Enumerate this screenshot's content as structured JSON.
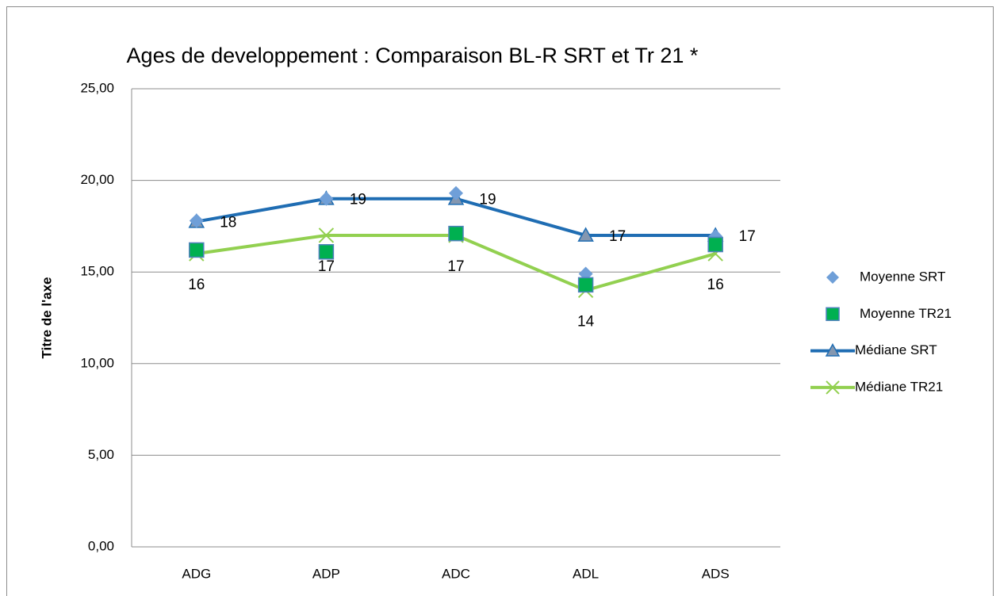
{
  "chart_data": {
    "type": "line",
    "title": "Ages de developpement  : Comparaison BL-R SRT et Tr 21 *",
    "y_axis_label": "Titre de l'axe",
    "categories": [
      "ADG",
      "ADP",
      "ADC",
      "ADL",
      "ADS"
    ],
    "ylim": [
      0,
      25
    ],
    "yticks": [
      {
        "value": 0,
        "label": "0,00"
      },
      {
        "value": 5,
        "label": "5,00"
      },
      {
        "value": 10,
        "label": "10,00"
      },
      {
        "value": 15,
        "label": "15,00"
      },
      {
        "value": 20,
        "label": "20,00"
      },
      {
        "value": 25,
        "label": "25,00"
      }
    ],
    "grid": true,
    "legend": "right",
    "series": [
      {
        "name": "Moyenne SRT",
        "color": "#6f9fd8",
        "marker": "diamond",
        "values": [
          17.8,
          19.0,
          19.3,
          14.9,
          16.95
        ]
      },
      {
        "name": "Moyenne TR21",
        "color": "#00b050",
        "marker": "square",
        "values": [
          16.2,
          16.1,
          17.1,
          14.3,
          16.5
        ]
      },
      {
        "name": "Médiane SRT",
        "color": "#1f6db3",
        "marker": "triangle",
        "line": true,
        "values": [
          17.75,
          19,
          19,
          17,
          17
        ],
        "value_labels": [
          "18",
          "19",
          "19",
          "17",
          "17"
        ]
      },
      {
        "name": "Médiane TR21",
        "color": "#92d050",
        "marker": "x",
        "line": true,
        "values": [
          16,
          17,
          17,
          14,
          16
        ],
        "value_labels": [
          "16",
          "17",
          "17",
          "14",
          "16"
        ]
      }
    ]
  }
}
